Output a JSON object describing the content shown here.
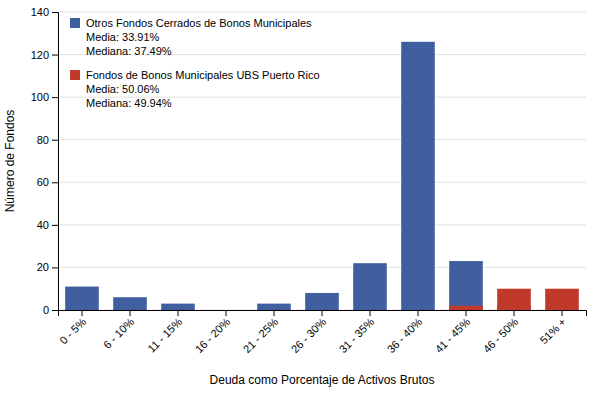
{
  "chart_data": {
    "type": "bar",
    "categories": [
      "0 - 5%",
      "6 - 10%",
      "11 - 15%",
      "16 - 20%",
      "21 - 25%",
      "26 - 30%",
      "31 - 35%",
      "36 - 40%",
      "41 - 45%",
      "46 - 50%",
      "51% +"
    ],
    "series": [
      {
        "name": "Otros Fondos Cerrados de Bonos Municipales",
        "color": "#3F5F9E",
        "values": [
          11,
          6,
          3,
          0,
          3,
          8,
          22,
          126,
          23,
          2,
          0
        ]
      },
      {
        "name": "Fondos de Bonos Municipales UBS Puerto Rico",
        "color": "#C0392B",
        "values": [
          0,
          0,
          0,
          0,
          0,
          0,
          0,
          0,
          2,
          10,
          10
        ]
      }
    ],
    "xlabel": "Deuda como Porcentaje de Activos Brutos",
    "ylabel": "Número de Fondos",
    "ylim": [
      0,
      140
    ],
    "yticks": [
      0,
      20,
      40,
      60,
      80,
      100,
      120,
      140
    ],
    "grid": true,
    "stacked": false,
    "legend": "upper left",
    "annotations": [
      "Media: 33.91%",
      "Mediana: 37.49%",
      "Media: 50.06%",
      "Mediana: 49.94%"
    ]
  }
}
